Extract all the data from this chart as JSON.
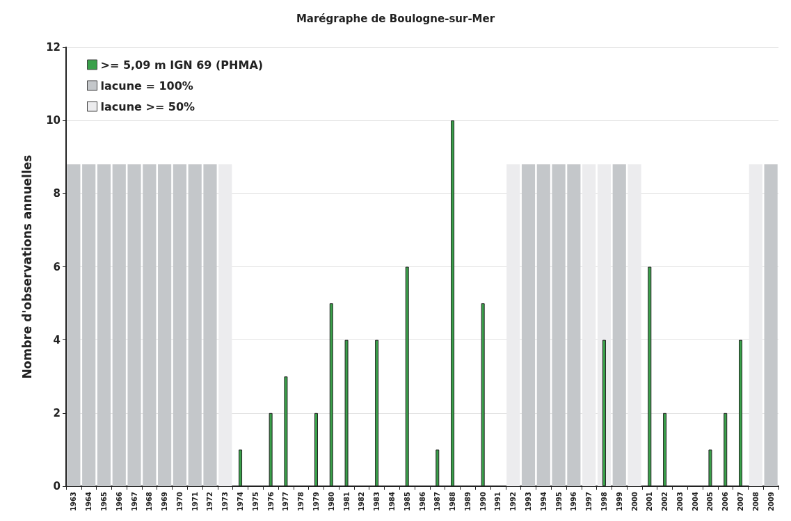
{
  "chart_data": {
    "type": "bar",
    "title": "Marégraphe de Boulogne-sur-Mer",
    "ylabel": "Nombre d'observations annuelles",
    "categories": [
      "1963",
      "1964",
      "1965",
      "1966",
      "1967",
      "1968",
      "1969",
      "1970",
      "1971",
      "1972",
      "1973",
      "1974",
      "1975",
      "1976",
      "1977",
      "1978",
      "1979",
      "1980",
      "1981",
      "1982",
      "1983",
      "1984",
      "1985",
      "1986",
      "1987",
      "1988",
      "1989",
      "1990",
      "1991",
      "1992",
      "1993",
      "1994",
      "1995",
      "1996",
      "1997",
      "1998",
      "1999",
      "2000",
      "2001",
      "2002",
      "2003",
      "2004",
      "2005",
      "2006",
      "2007",
      "2008",
      "2009"
    ],
    "series": [
      {
        "name": ">= 5,09 m IGN 69 (PHMA)",
        "color": "#3aa04a",
        "values": [
          0,
          0,
          0,
          0,
          0,
          0,
          0,
          0,
          0,
          0,
          0,
          1,
          0,
          2,
          3,
          0,
          2,
          5,
          4,
          0,
          4,
          0,
          6,
          0,
          1,
          10,
          0,
          5,
          0,
          0,
          0,
          0,
          0,
          0,
          0,
          4,
          0,
          0,
          6,
          2,
          0,
          0,
          1,
          2,
          4,
          0,
          0
        ]
      },
      {
        "name": "lacune = 100%",
        "color": "#c4c7ca",
        "values": [
          8.8,
          8.8,
          8.8,
          8.8,
          8.8,
          8.8,
          8.8,
          8.8,
          8.8,
          8.8,
          null,
          null,
          null,
          null,
          null,
          null,
          null,
          null,
          null,
          null,
          null,
          null,
          null,
          null,
          null,
          null,
          null,
          null,
          null,
          null,
          8.8,
          8.8,
          8.8,
          8.8,
          null,
          null,
          8.8,
          null,
          null,
          null,
          null,
          null,
          null,
          null,
          null,
          null,
          8.8
        ]
      },
      {
        "name": "lacune >= 50%",
        "color": "#ececee",
        "values": [
          null,
          null,
          null,
          null,
          null,
          null,
          null,
          null,
          null,
          null,
          8.8,
          null,
          null,
          null,
          null,
          null,
          null,
          null,
          null,
          null,
          null,
          null,
          null,
          null,
          null,
          null,
          null,
          null,
          null,
          8.8,
          null,
          null,
          null,
          null,
          8.8,
          8.8,
          null,
          8.8,
          null,
          null,
          null,
          null,
          null,
          null,
          null,
          8.8,
          null
        ]
      }
    ],
    "ylim": [
      0,
      12
    ],
    "yticks": [
      0,
      2,
      4,
      6,
      8,
      10,
      12
    ],
    "grid": "y",
    "legend": "top left"
  }
}
